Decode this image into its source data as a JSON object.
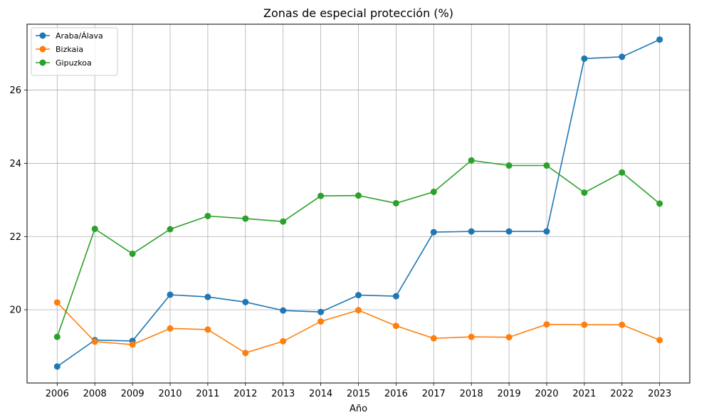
{
  "chart_data": {
    "type": "line",
    "title": "Zonas de especial protección (%)",
    "xlabel": "Año",
    "ylabel": "",
    "categories": [
      "2006",
      "2008",
      "2009",
      "2010",
      "2011",
      "2012",
      "2013",
      "2014",
      "2015",
      "2016",
      "2017",
      "2018",
      "2019",
      "2020",
      "2021",
      "2022",
      "2023"
    ],
    "ylim": [
      18.0,
      27.8
    ],
    "yticks": [
      20,
      22,
      24,
      26
    ],
    "grid": true,
    "legend_position": "top-left",
    "markers": "circle",
    "series": [
      {
        "name": "Araba/Álava",
        "color": "#1f77b4",
        "values": [
          18.45,
          19.17,
          19.15,
          20.41,
          20.35,
          20.21,
          19.98,
          19.94,
          20.4,
          20.37,
          22.12,
          22.14,
          22.14,
          22.14,
          26.86,
          26.91,
          27.38
        ]
      },
      {
        "name": "Bizkaia",
        "color": "#ff7f0e",
        "values": [
          20.2,
          19.13,
          19.05,
          19.49,
          19.46,
          18.82,
          19.14,
          19.68,
          19.99,
          19.56,
          19.22,
          19.26,
          19.25,
          19.6,
          19.59,
          19.59,
          19.17
        ]
      },
      {
        "name": "Gipuzkoa",
        "color": "#2ca02c",
        "values": [
          19.26,
          22.21,
          21.53,
          22.2,
          22.56,
          22.49,
          22.41,
          23.11,
          23.12,
          22.91,
          23.22,
          24.08,
          23.94,
          23.94,
          23.2,
          23.75,
          22.9
        ]
      }
    ]
  }
}
